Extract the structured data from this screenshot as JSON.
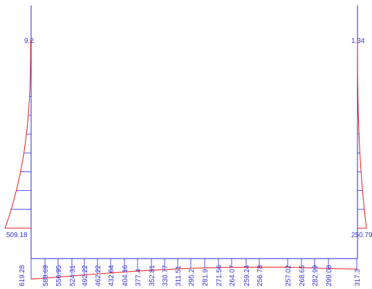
{
  "colors": {
    "frame": "#2222ee",
    "moment_curve": "#ee1111",
    "label": "#3333cc"
  },
  "left_column": {
    "top_value": "9.2",
    "bottom_value": "509.18"
  },
  "right_column": {
    "top_value": "1.34",
    "bottom_value": "250.79"
  },
  "beam": {
    "values": [
      "619.28",
      "588.69",
      "556.95",
      "524.31",
      "492.22",
      "462.22",
      "432.64",
      "404.16",
      "377.4",
      "352.81",
      "330.77",
      "311.51",
      "295.2",
      "281.9",
      "271.56",
      "264.07",
      "259.24",
      "256.78",
      "257.02",
      "268.65",
      "282.99",
      "299.08",
      "317.3"
    ]
  }
}
